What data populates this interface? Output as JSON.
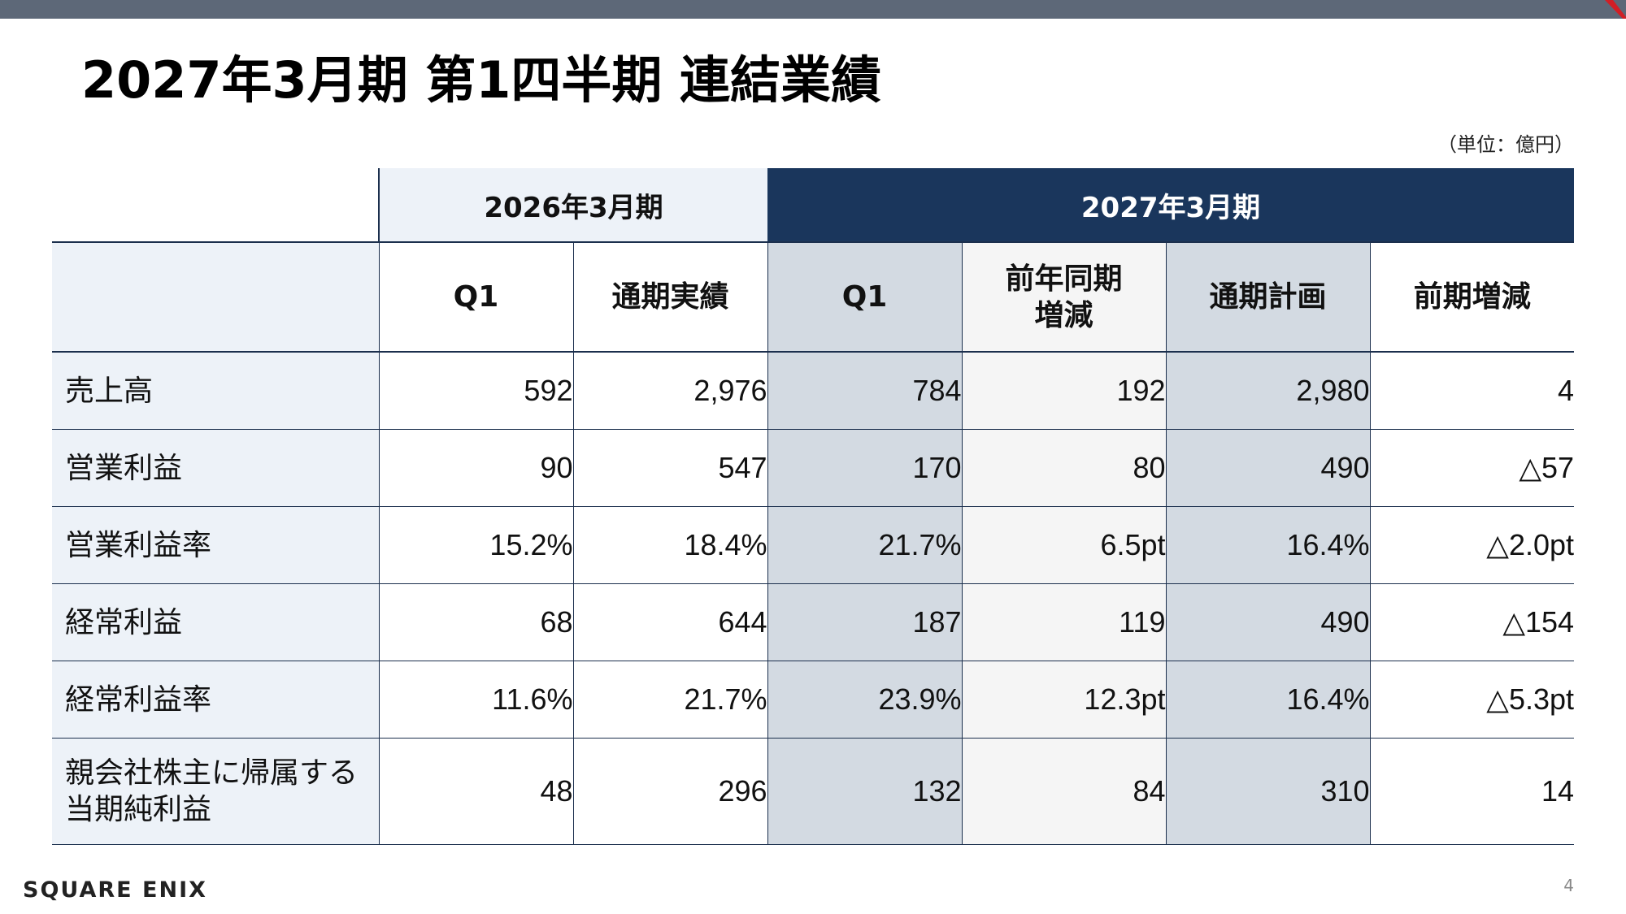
{
  "slide": {
    "title": "2027年3月期 第1四半期 連結業績",
    "unit": "（単位：億円）",
    "page_number": "4",
    "brand": "SQUARE ENIX"
  },
  "table": {
    "period_prev": "2026年3月期",
    "period_cur": "2027年3月期",
    "columns": [
      "Q1",
      "通期実績",
      "Q1",
      "前年同期\n増減",
      "通期計画",
      "前期増減"
    ],
    "rows": [
      {
        "label": "売上高",
        "values": [
          "592",
          "2,976",
          "784",
          "192",
          "2,980",
          "4"
        ]
      },
      {
        "label": "営業利益",
        "values": [
          "90",
          "547",
          "170",
          "80",
          "490",
          "△57"
        ]
      },
      {
        "label": "営業利益率",
        "values": [
          "15.2%",
          "18.4%",
          "21.7%",
          "6.5pt",
          "16.4%",
          "△2.0pt"
        ]
      },
      {
        "label": "経常利益",
        "values": [
          "68",
          "644",
          "187",
          "119",
          "490",
          "△154"
        ]
      },
      {
        "label": "経常利益率",
        "values": [
          "11.6%",
          "21.7%",
          "23.9%",
          "12.3pt",
          "16.4%",
          "△5.3pt"
        ]
      },
      {
        "label": "親会社株主に帰属する\n当期純利益",
        "values": [
          "48",
          "296",
          "132",
          "84",
          "310",
          "14"
        ]
      }
    ]
  },
  "colors": {
    "top_bar": "#5d6878",
    "header_navy": "#1a365c",
    "label_bg": "#edf2f8",
    "current_q_bg": "#d3dae2",
    "accent_red": "#d11f26"
  }
}
